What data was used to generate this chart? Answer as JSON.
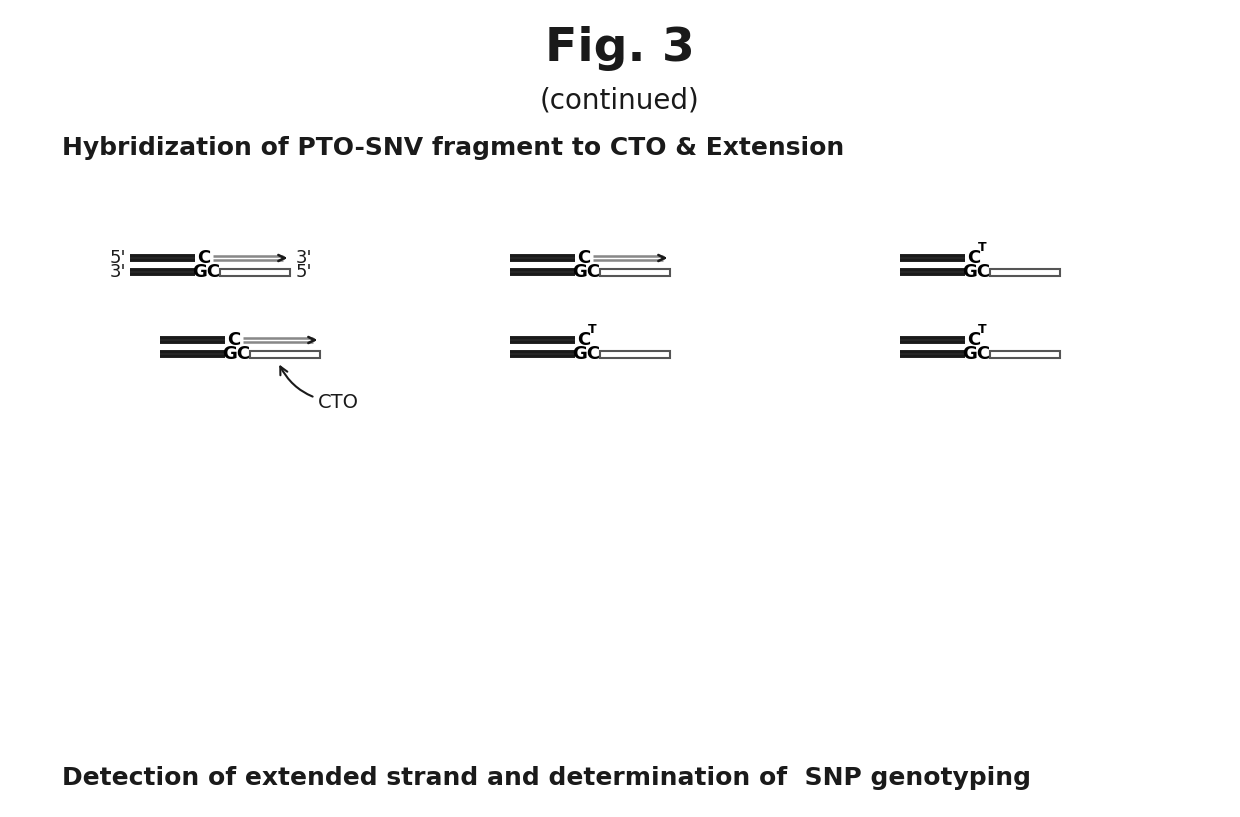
{
  "title": "Fig. 3",
  "subtitle": "(continued)",
  "section_title": "Hybridization of PTO-SNV fragment to CTO & Extension",
  "bottom_text": "Detection of extended strand and determination of  SNP genotyping",
  "background_color": "#ffffff",
  "text_color": "#1a1a1a",
  "fig_width": 12.4,
  "fig_height": 8.17,
  "dpi": 100
}
